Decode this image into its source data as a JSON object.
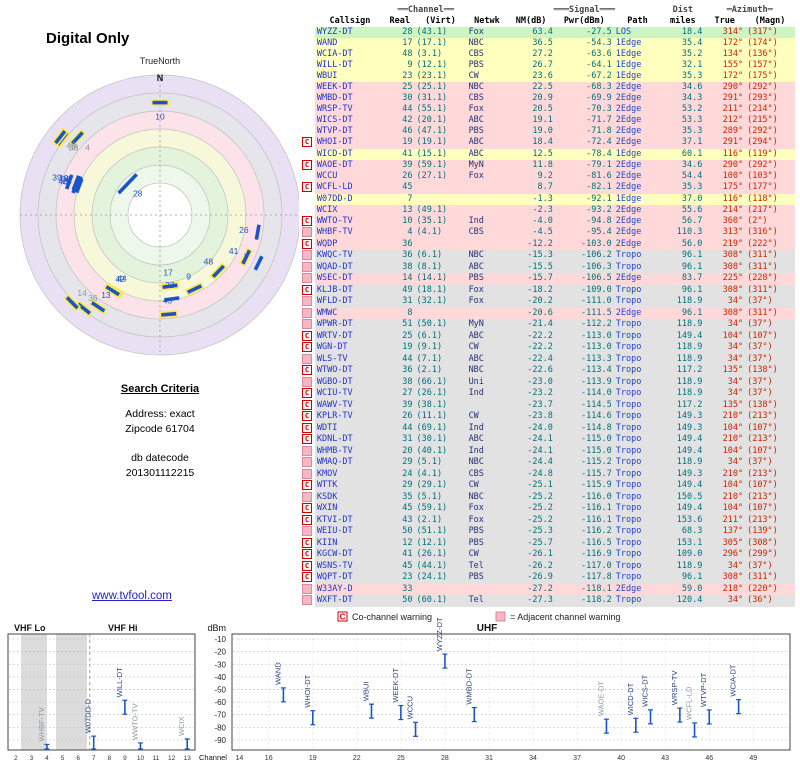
{
  "ui": {
    "title": "Digital Only",
    "true_north": "TrueNorth",
    "north": "N",
    "link": "www.tvfool.com"
  },
  "search": {
    "heading": "Search Criteria",
    "address": "Address: exact",
    "zipcode": "Zipcode 61704",
    "db_label": "db datecode",
    "db_code": "201301112215"
  },
  "legend": {
    "c": "C",
    "c_text": "Co-channel warning",
    "a_text": "= Adjacent channel warning"
  },
  "bands": {
    "vhf_lo": "VHF Lo",
    "vhf_hi": "VHF Hi",
    "uhf": "UHF",
    "dbm": "dBm",
    "channel_label": "Channel"
  },
  "colors": {
    "marker_blue": "#1a55c8",
    "highlight_yellow": "#ffe94d",
    "azimuth_red": "#cc2200",
    "row_los": "#ccf5c2",
    "row_1edge": "#ffffbe",
    "row_2edge": "#ffd9d9",
    "row_tropo": "#e2e2e2"
  },
  "polar": {
    "min_nm": -19,
    "highlight": [
      "WWTO-TV",
      "WHBF-TV",
      "KWQC-TV",
      "WQAD-DT",
      "KLJB-DT",
      "WCFL-LD",
      "WILL-DT",
      "WAND",
      "WICD-DT",
      "WCIA-DT",
      "WICS-DT",
      "WRSP-TV",
      "WCIX",
      "WSEC-DT",
      "WQDP"
    ]
  },
  "band_chart": {
    "station_count": 19,
    "dim_labels": [
      "WHBF-TV",
      "WWTO-TV",
      "WCIX",
      "WAOE-DT",
      "WCFL-LD"
    ],
    "y_ticks": [
      -10,
      -20,
      -30,
      -40,
      -50,
      -60,
      -70,
      -80,
      -90
    ],
    "x_ticks_vhf": [
      2,
      3,
      4,
      5,
      6,
      7,
      8,
      9,
      10,
      11,
      12,
      13
    ],
    "x_ticks_uhf": [
      14,
      16,
      19,
      22,
      25,
      28,
      31,
      34,
      37,
      40,
      43,
      46,
      49
    ]
  },
  "table": {
    "group_channel": "══Channel══",
    "group_signal": "═══Signal═══",
    "group_dist": "Dist",
    "group_azimuth": "═Azimuth═",
    "cols": {
      "callsign": "Callsign",
      "real": "Real",
      "virt": "(Virt)",
      "net": "Netwk",
      "nm": "NM(dB)",
      "pwr": "Pwr(dBm)",
      "path": "Path",
      "miles": "miles",
      "true": "True",
      "magn": "(Magn)"
    },
    "rows": [
      [
        "",
        "WYZZ-DT",
        "28",
        "(43.1)",
        "Fox",
        "63.4",
        "-27.5",
        "LOS",
        "18.4",
        "314°",
        "(317°)"
      ],
      [
        "",
        "WAND",
        "17",
        "(17.1)",
        "NBC",
        "36.5",
        "-54.3",
        "1Edge",
        "35.4",
        "172°",
        "(174°)"
      ],
      [
        "",
        "WCIA-DT",
        "48",
        "(3.1)",
        "CBS",
        "27.2",
        "-63.6",
        "1Edge",
        "35.2",
        "134°",
        "(136°)"
      ],
      [
        "",
        "WILL-DT",
        "9",
        "(12.1)",
        "PBS",
        "26.7",
        "-64.1",
        "1Edge",
        "32.1",
        "155°",
        "(157°)"
      ],
      [
        "",
        "WBUI",
        "23",
        "(23.1)",
        "CW",
        "23.6",
        "-67.2",
        "1Edge",
        "35.3",
        "172°",
        "(175°)"
      ],
      [
        "",
        "WEEK-DT",
        "25",
        "(25.1)",
        "NBC",
        "22.5",
        "-68.3",
        "2Edge",
        "34.6",
        "290°",
        "(292°)"
      ],
      [
        "",
        "WMBD-DT",
        "30",
        "(31.1)",
        "CBS",
        "20.9",
        "-69.9",
        "2Edge",
        "34.3",
        "291°",
        "(293°)"
      ],
      [
        "",
        "WRSP-TV",
        "44",
        "(55.1)",
        "Fox",
        "20.5",
        "-70.3",
        "2Edge",
        "53.2",
        "211°",
        "(214°)"
      ],
      [
        "",
        "WICS-DT",
        "42",
        "(20.1)",
        "ABC",
        "19.1",
        "-71.7",
        "2Edge",
        "53.3",
        "212°",
        "(215°)"
      ],
      [
        "",
        "WTVP-DT",
        "46",
        "(47.1)",
        "PBS",
        "19.0",
        "-71.8",
        "2Edge",
        "35.3",
        "289°",
        "(292°)"
      ],
      [
        "c",
        "WHOI-DT",
        "19",
        "(19.1)",
        "ABC",
        "18.4",
        "-72.4",
        "2Edge",
        "37.1",
        "291°",
        "(294°)"
      ],
      [
        "",
        "WICD-DT",
        "41",
        "(15.1)",
        "ABC",
        "12.5",
        "-78.4",
        "1Edge",
        "60.1",
        "116°",
        "(119°)"
      ],
      [
        "c",
        "WAOE-DT",
        "39",
        "(59.1)",
        "MyN",
        "11.8",
        "-79.1",
        "2Edge",
        "34.6",
        "290°",
        "(292°)"
      ],
      [
        "",
        "WCCU",
        "26",
        "(27.1)",
        "Fox",
        "9.2",
        "-81.6",
        "2Edge",
        "54.4",
        "100°",
        "(103°)"
      ],
      [
        "c",
        "WCFL-LD",
        "45",
        "",
        "",
        "8.7",
        "-82.1",
        "2Edge",
        "35.3",
        "175°",
        "(177°)"
      ],
      [
        "",
        "W07DD-D",
        "7",
        "",
        "",
        "-1.3",
        "-92.1",
        "1Edge",
        "37.0",
        "116°",
        "(118°)"
      ],
      [
        "",
        "WCIX",
        "13",
        "(49.1)",
        "",
        "-2.3",
        "-93.2",
        "2Edge",
        "55.6",
        "214°",
        "(217°)"
      ],
      [
        "c",
        "WWTO-TV",
        "10",
        "(35.1)",
        "Ind",
        "-4.0",
        "-94.8",
        "2Edge",
        "56.7",
        "360°",
        "(2°)"
      ],
      [
        "a",
        "WHBF-TV",
        "4",
        "(4.1)",
        "CBS",
        "-4.5",
        "-95.4",
        "2Edge",
        "110.3",
        "313°",
        "(316°)"
      ],
      [
        "c",
        "WQDP",
        "36",
        "",
        "",
        "-12.2",
        "-103.0",
        "2Edge",
        "56.0",
        "219°",
        "(222°)"
      ],
      [
        "a",
        "KWQC-TV",
        "36",
        "(6.1)",
        "NBC",
        "-15.3",
        "-106.2",
        "Tropo",
        "96.1",
        "308°",
        "(311°)"
      ],
      [
        "a",
        "WQAD-DT",
        "38",
        "(8.1)",
        "ABC",
        "-15.5",
        "-106.3",
        "Tropo",
        "96.1",
        "308°",
        "(311°)"
      ],
      [
        "a",
        "WSEC-DT",
        "14",
        "(14.1)",
        "PBS",
        "-15.7",
        "-106.5",
        "2Edge",
        "83.7",
        "225°",
        "(228°)"
      ],
      [
        "c",
        "KLJB-DT",
        "49",
        "(18.1)",
        "Fox",
        "-18.2",
        "-109.0",
        "Tropo",
        "96.1",
        "308°",
        "(311°)"
      ],
      [
        "a",
        "WFLD-DT",
        "31",
        "(32.1)",
        "Fox",
        "-20.2",
        "-111.0",
        "Tropo",
        "118.9",
        "34°",
        "(37°)"
      ],
      [
        "a",
        "WMWC",
        "8",
        "",
        "",
        "-20.6",
        "-111.5",
        "2Edge",
        "96.1",
        "308°",
        "(311°)"
      ],
      [
        "a",
        "WPWR-DT",
        "51",
        "(50.1)",
        "MyN",
        "-21.4",
        "-112.2",
        "Tropo",
        "118.9",
        "34°",
        "(37°)"
      ],
      [
        "c",
        "WRTV-DT",
        "25",
        "(6.1)",
        "ABC",
        "-22.2",
        "-113.0",
        "Tropo",
        "149.4",
        "104°",
        "(107°)"
      ],
      [
        "c",
        "WGN-DT",
        "19",
        "(9.1)",
        "CW",
        "-22.2",
        "-113.0",
        "Tropo",
        "118.9",
        "34°",
        "(37°)"
      ],
      [
        "a",
        "WLS-TV",
        "44",
        "(7.1)",
        "ABC",
        "-22.4",
        "-113.3",
        "Tropo",
        "118.9",
        "34°",
        "(37°)"
      ],
      [
        "c",
        "WTWO-DT",
        "36",
        "(2.1)",
        "NBC",
        "-22.6",
        "-113.4",
        "Tropo",
        "117.2",
        "135°",
        "(138°)"
      ],
      [
        "a",
        "WGBO-DT",
        "38",
        "(66.1)",
        "Uni",
        "-23.0",
        "-113.9",
        "Tropo",
        "118.9",
        "34°",
        "(37°)"
      ],
      [
        "c",
        "WCIU-TV",
        "27",
        "(26.1)",
        "Ind",
        "-23.2",
        "-114.0",
        "Tropo",
        "118.9",
        "34°",
        "(37°)"
      ],
      [
        "c",
        "WAWV-TV",
        "39",
        "(38.1)",
        "",
        "-23.7",
        "-114.5",
        "Tropo",
        "117.2",
        "135°",
        "(138°)"
      ],
      [
        "c",
        "KPLR-TV",
        "26",
        "(11.1)",
        "CW",
        "-23.8",
        "-114.6",
        "Tropo",
        "149.3",
        "210°",
        "(213°)"
      ],
      [
        "c",
        "WDTI",
        "44",
        "(69.1)",
        "Ind",
        "-24.0",
        "-114.8",
        "Tropo",
        "149.3",
        "104°",
        "(107°)"
      ],
      [
        "c",
        "KDNL-DT",
        "31",
        "(30.1)",
        "ABC",
        "-24.1",
        "-115.0",
        "Tropo",
        "149.4",
        "210°",
        "(213°)"
      ],
      [
        "a",
        "WHMB-TV",
        "20",
        "(40.1)",
        "Ind",
        "-24.1",
        "-115.0",
        "Tropo",
        "149.4",
        "104°",
        "(107°)"
      ],
      [
        "a",
        "WMAQ-DT",
        "29",
        "(5.1)",
        "NBC",
        "-24.4",
        "-115.2",
        "Tropo",
        "118.9",
        "34°",
        "(37°)"
      ],
      [
        "a",
        "KMOV",
        "24",
        "(4.1)",
        "CBS",
        "-24.8",
        "-115.7",
        "Tropo",
        "149.3",
        "210°",
        "(213°)"
      ],
      [
        "c",
        "WTTK",
        "29",
        "(29.1)",
        "CW",
        "-25.1",
        "-115.9",
        "Tropo",
        "149.4",
        "104°",
        "(107°)"
      ],
      [
        "a",
        "KSDK",
        "35",
        "(5.1)",
        "NBC",
        "-25.2",
        "-116.0",
        "Tropo",
        "150.5",
        "210°",
        "(213°)"
      ],
      [
        "c",
        "WXIN",
        "45",
        "(59.1)",
        "Fox",
        "-25.2",
        "-116.1",
        "Tropo",
        "149.4",
        "104°",
        "(107°)"
      ],
      [
        "c",
        "KTVI-DT",
        "43",
        "(2.1)",
        "Fox",
        "-25.2",
        "-116.1",
        "Tropo",
        "153.6",
        "211°",
        "(213°)"
      ],
      [
        "a",
        "WEIU-DT",
        "50",
        "(51.1)",
        "PBS",
        "-25.3",
        "-116.2",
        "Tropo",
        "68.3",
        "137°",
        "(139°)"
      ],
      [
        "c",
        "KIIN",
        "12",
        "(12.1)",
        "PBS",
        "-25.7",
        "-116.5",
        "Tropo",
        "153.1",
        "305°",
        "(308°)"
      ],
      [
        "c",
        "KGCW-DT",
        "41",
        "(26.1)",
        "CW",
        "-26.1",
        "-116.9",
        "Tropo",
        "109.0",
        "296°",
        "(299°)"
      ],
      [
        "c",
        "WSNS-TV",
        "45",
        "(44.1)",
        "Tel",
        "-26.2",
        "-117.0",
        "Tropo",
        "118.9",
        "34°",
        "(37°)"
      ],
      [
        "c",
        "WQPT-DT",
        "23",
        "(24.1)",
        "PBS",
        "-26.9",
        "-117.8",
        "Tropo",
        "96.1",
        "308°",
        "(311°)"
      ],
      [
        "a",
        "W33AY-D",
        "33",
        "",
        "",
        "-27.2",
        "-118.1",
        "2Edge",
        "59.0",
        "218°",
        "(220°)"
      ],
      [
        "a",
        "WXFT-DT",
        "50",
        "(60.1)",
        "Tel",
        "-27.3",
        "-118.2",
        "Tropo",
        "120.4",
        "34°",
        "(36°)"
      ]
    ]
  }
}
